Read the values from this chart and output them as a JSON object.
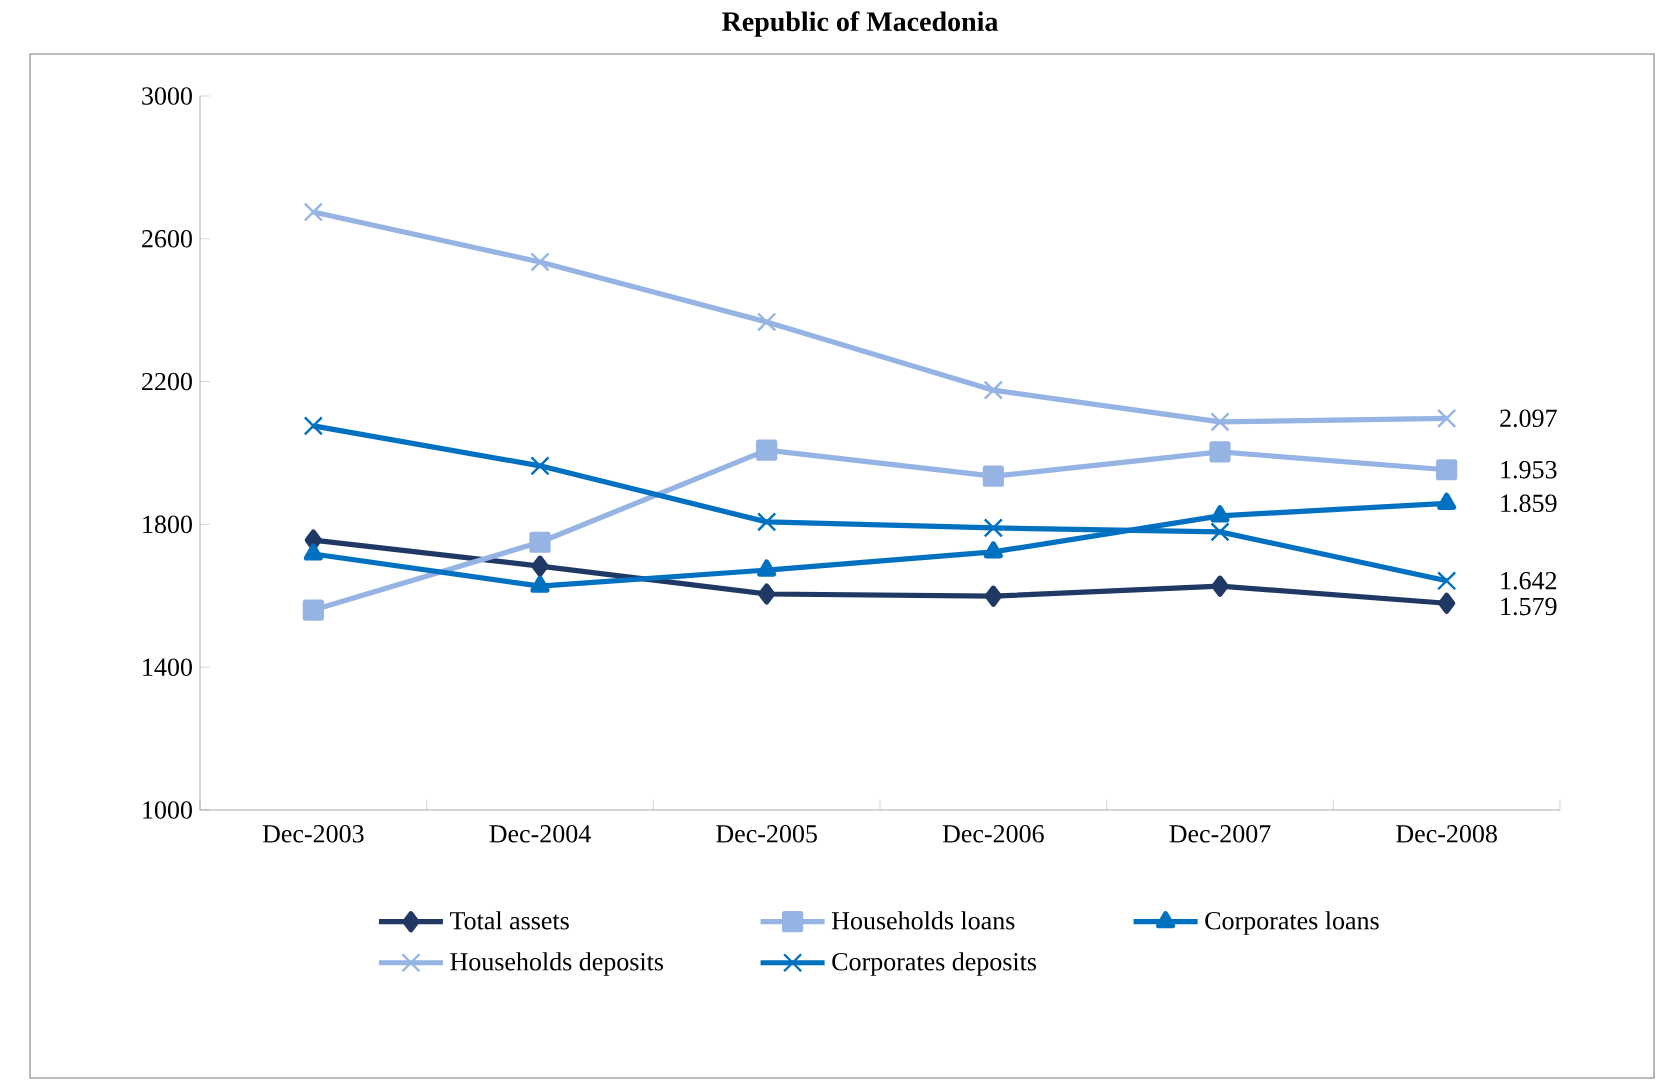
{
  "chart_data": {
    "type": "line",
    "title": "Republic of Macedonia",
    "categories": [
      "Dec-2003",
      "Dec-2004",
      "Dec-2005",
      "Dec-2006",
      "Dec-2007",
      "Dec-2008"
    ],
    "series": [
      {
        "name": "Total assets",
        "color": "#1f3864",
        "marker": "diamond",
        "values": [
          1756,
          1683,
          1605,
          1599,
          1627,
          1579
        ],
        "value_labels": [
          null,
          null,
          null,
          null,
          null,
          "1.579"
        ]
      },
      {
        "name": "Households loans",
        "color": "#95b3e3",
        "marker": "square",
        "values": [
          1560,
          1750,
          2008,
          1935,
          2003,
          1953
        ],
        "value_labels": [
          null,
          null,
          null,
          null,
          null,
          "1.953"
        ]
      },
      {
        "name": "Corporates loans",
        "color": "#0070c0",
        "marker": "triangle",
        "values": [
          1717,
          1627,
          1672,
          1723,
          1824,
          1859
        ],
        "value_labels": [
          null,
          null,
          null,
          null,
          null,
          "1.859"
        ]
      },
      {
        "name": "Households deposits",
        "color": "#95b3e3",
        "marker": "cross",
        "values": [
          2675,
          2535,
          2367,
          2176,
          2087,
          2097
        ],
        "value_labels": [
          null,
          null,
          null,
          null,
          null,
          "2.097"
        ]
      },
      {
        "name": "Corporates deposits",
        "color": "#0070c0",
        "marker": "cross",
        "values": [
          2076,
          1964,
          1807,
          1790,
          1779,
          1642
        ],
        "value_labels": [
          null,
          null,
          null,
          null,
          null,
          "1.642"
        ]
      }
    ],
    "ylim": [
      1000,
      3000
    ],
    "yticks": [
      1000,
      1400,
      1800,
      2200,
      2600,
      3000
    ],
    "grid": false,
    "legend": "bottom",
    "line_style": "solid"
  }
}
